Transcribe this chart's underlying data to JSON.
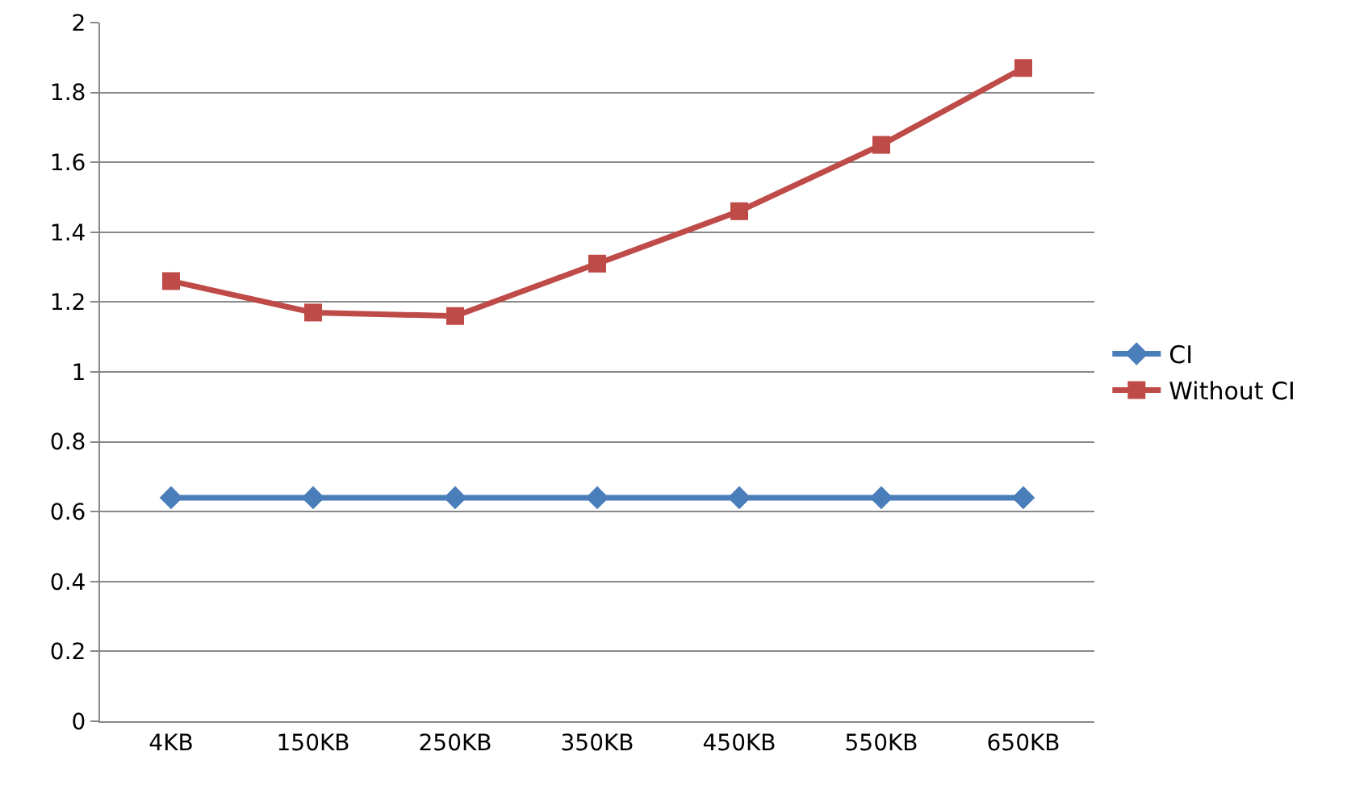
{
  "chart_data": {
    "type": "line",
    "categories": [
      "4KB",
      "150KB",
      "250KB",
      "350KB",
      "450KB",
      "550KB",
      "650KB"
    ],
    "series": [
      {
        "name": "CI",
        "color": "#4a7ebb",
        "marker": "diamond",
        "values": [
          0.64,
          0.64,
          0.64,
          0.64,
          0.64,
          0.64,
          0.64
        ]
      },
      {
        "name": "Without CI",
        "color": "#be4b48",
        "marker": "square",
        "values": [
          1.26,
          1.17,
          1.16,
          1.31,
          1.46,
          1.65,
          1.87
        ]
      }
    ],
    "ylim": [
      0,
      2
    ],
    "yticks": [
      0,
      0.2,
      0.4,
      0.6,
      0.8,
      1,
      1.2,
      1.4,
      1.6,
      1.8,
      2
    ],
    "grid": "y",
    "legend": "right",
    "line_style": "solid"
  }
}
